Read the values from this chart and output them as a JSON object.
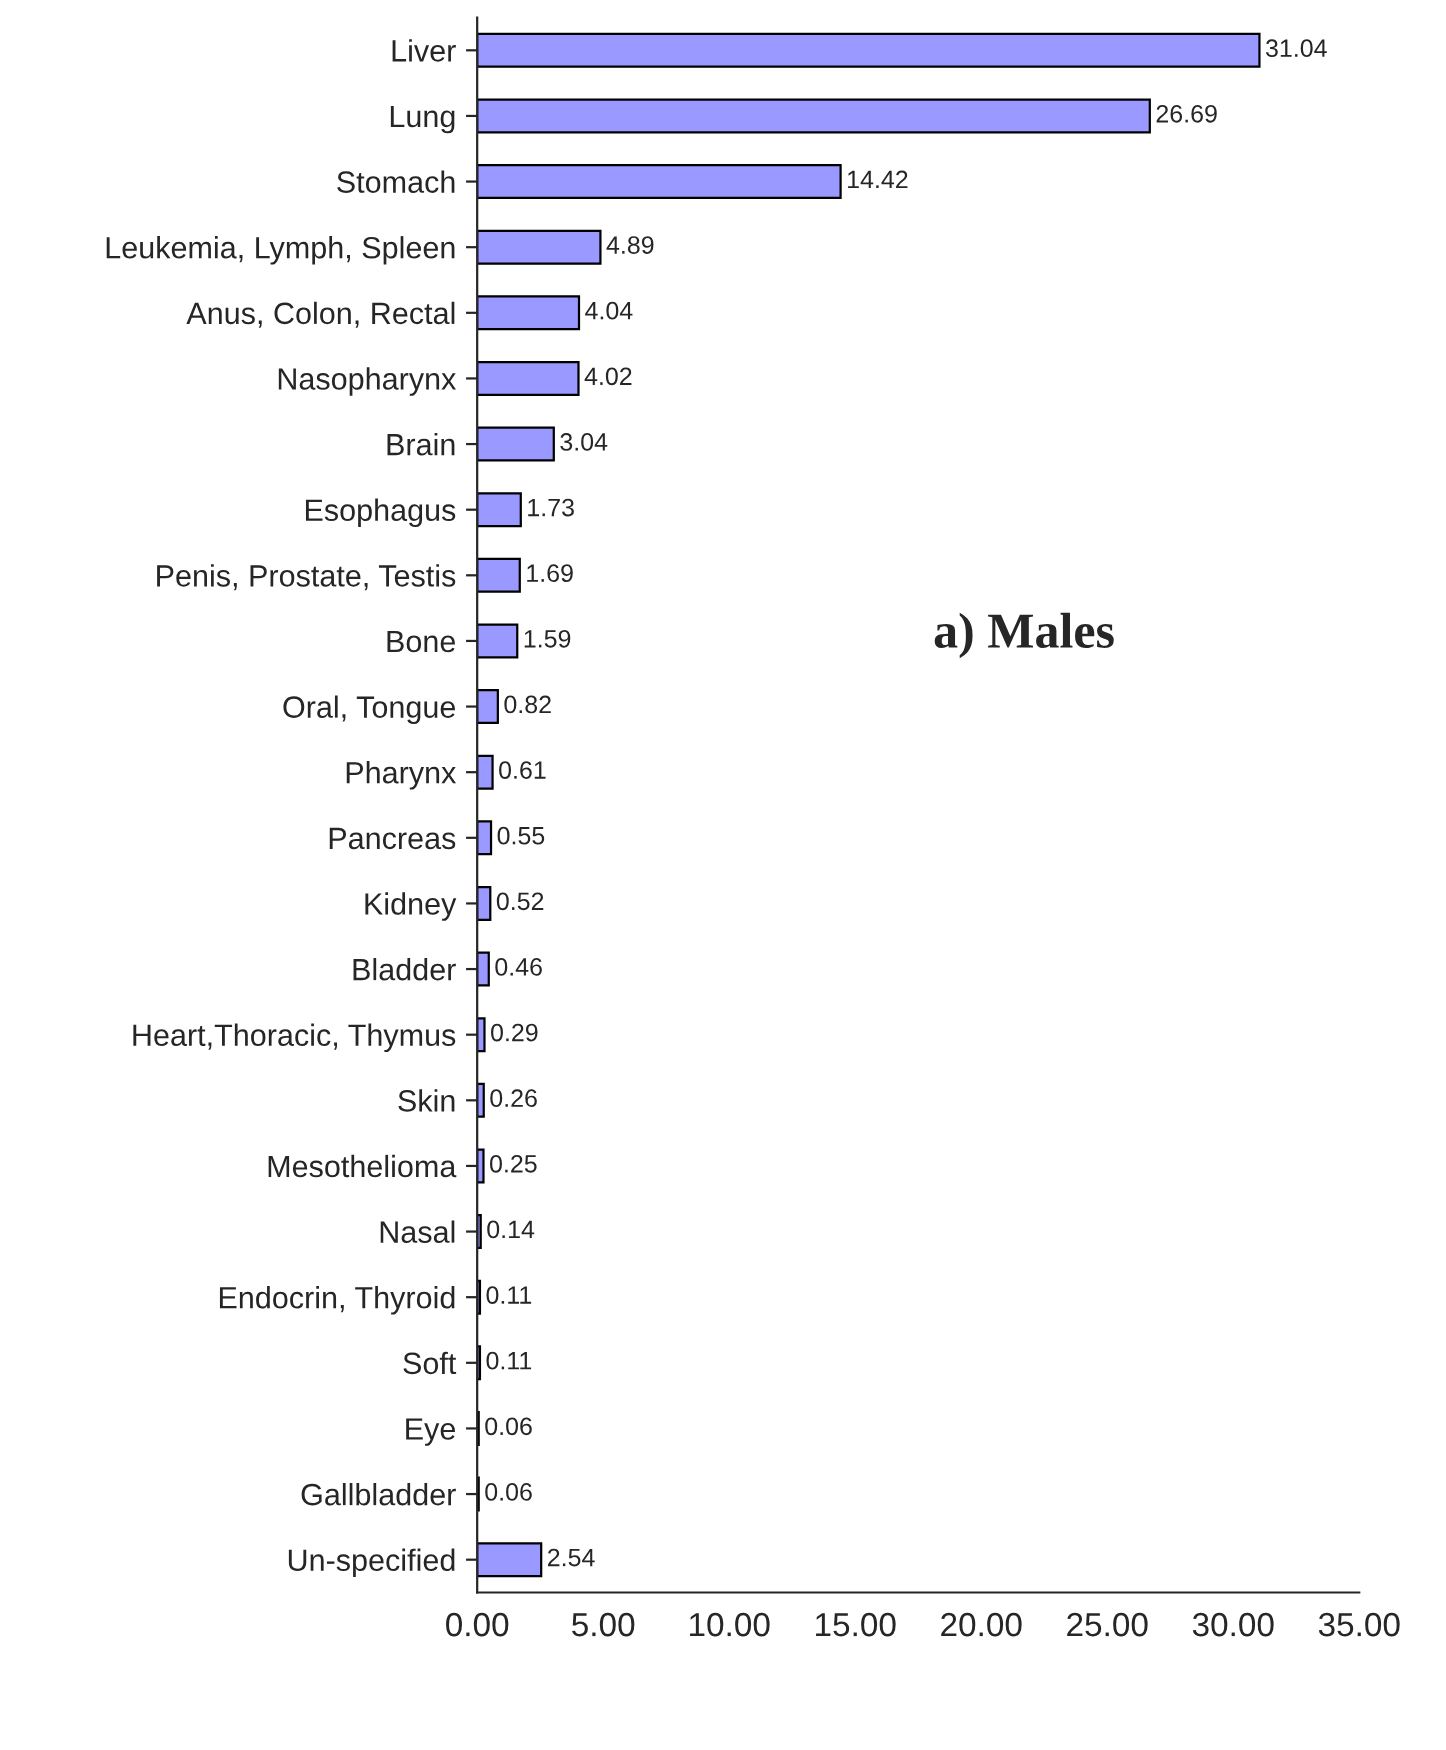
{
  "chart_data": {
    "type": "bar",
    "orientation": "horizontal",
    "categories": [
      "Liver",
      "Lung",
      "Stomach",
      "Leukemia, Lymph, Spleen",
      "Anus, Colon, Rectal",
      "Nasopharynx",
      "Brain",
      "Esophagus",
      "Penis, Prostate, Testis",
      "Bone",
      "Oral, Tongue",
      "Pharynx",
      "Pancreas",
      "Kidney",
      "Bladder",
      "Heart,Thoracic, Thymus",
      "Skin",
      "Mesothelioma",
      "Nasal",
      "Endocrin, Thyroid",
      "Soft",
      "Eye",
      "Gallbladder",
      "Un-specified"
    ],
    "values": [
      31.04,
      26.69,
      14.42,
      4.89,
      4.04,
      4.02,
      3.04,
      1.73,
      1.69,
      1.59,
      0.82,
      0.61,
      0.55,
      0.52,
      0.46,
      0.29,
      0.26,
      0.25,
      0.14,
      0.11,
      0.11,
      0.06,
      0.06,
      2.54
    ],
    "color": "#9999ff",
    "data_labels": true,
    "xlim": [
      0,
      35
    ],
    "xticks": [
      {
        "value": 0,
        "label": "0.00"
      },
      {
        "value": 5,
        "label": "5.00"
      },
      {
        "value": 10,
        "label": "10.00"
      },
      {
        "value": 15,
        "label": "15.00"
      },
      {
        "value": 20,
        "label": "20.00"
      },
      {
        "value": 25,
        "label": "25.00"
      },
      {
        "value": 30,
        "label": "30.00"
      },
      {
        "value": 35,
        "label": "35.00"
      }
    ],
    "annotations": [
      "a) Males"
    ],
    "grid": false
  }
}
